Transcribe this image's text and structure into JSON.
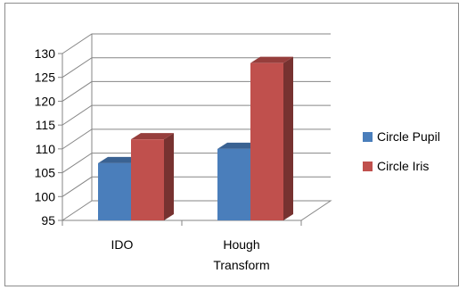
{
  "chart_data": {
    "type": "bar",
    "variant": "3d-clustered-column",
    "categories": [
      [
        "IDO"
      ],
      [
        "Hough",
        "Transform"
      ]
    ],
    "series": [
      {
        "name": "Circle Pupil",
        "values": [
          107,
          110
        ],
        "color": "#4a7ebb"
      },
      {
        "name": "Circle Iris",
        "values": [
          112,
          128
        ],
        "color": "#c0504d"
      }
    ],
    "ylim": [
      95,
      130
    ],
    "yticks": [
      95,
      100,
      105,
      110,
      115,
      120,
      125,
      130
    ],
    "grid": true,
    "legend_position": "right"
  }
}
